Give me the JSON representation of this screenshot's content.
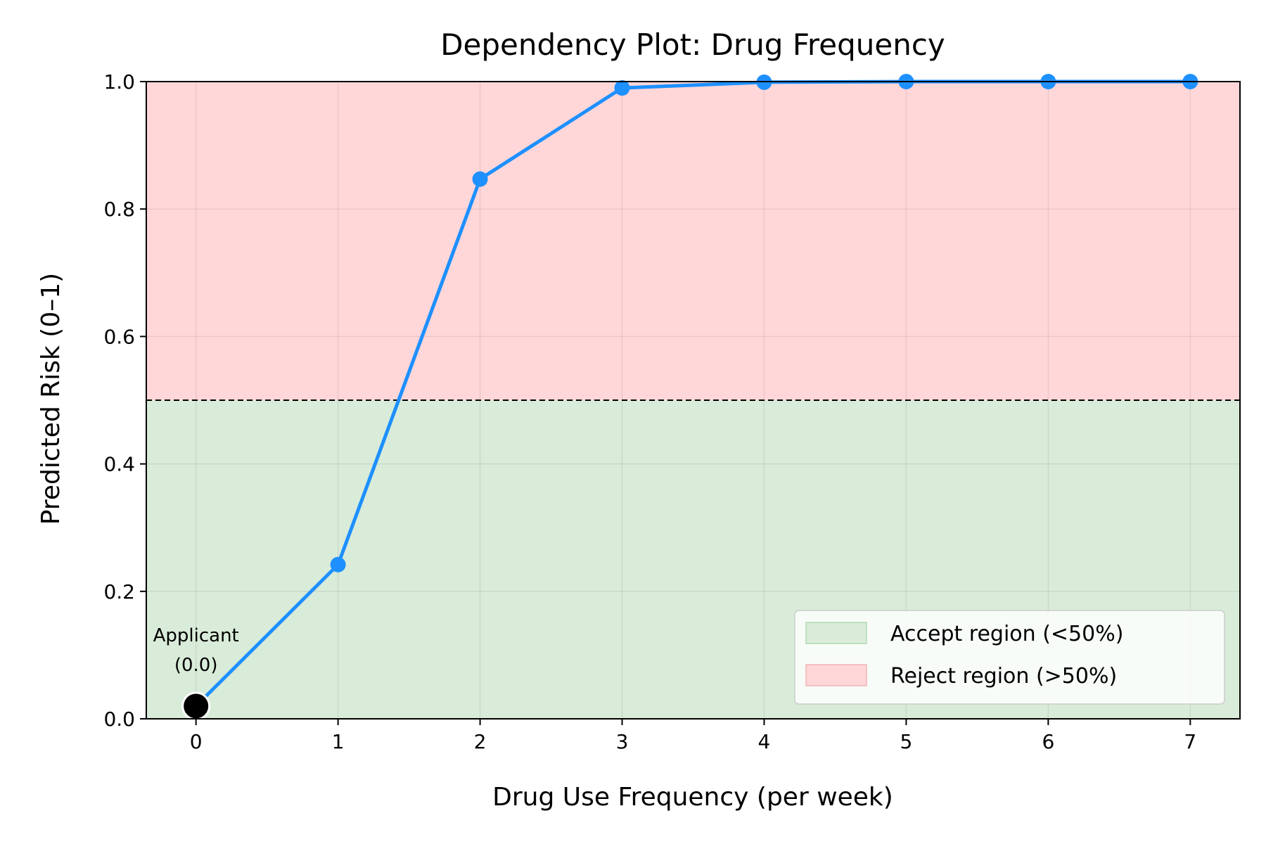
{
  "chart_data": {
    "type": "line",
    "title": "Dependency Plot: Drug Frequency",
    "xlabel": "Drug Use Frequency (per week)",
    "ylabel": "Predicted Risk (0–1)",
    "xlim": [
      -0.35,
      7.35
    ],
    "ylim": [
      0,
      1
    ],
    "xticks": [
      0,
      1,
      2,
      3,
      4,
      5,
      6,
      7
    ],
    "xtick_labels": [
      "0",
      "1",
      "2",
      "3",
      "4",
      "5",
      "6",
      "7"
    ],
    "yticks": [
      0,
      0.2,
      0.4,
      0.6,
      0.8,
      1.0
    ],
    "ytick_labels": [
      "0.0",
      "0.2",
      "0.4",
      "0.6",
      "0.8",
      "1.0"
    ],
    "grid": true,
    "series": [
      {
        "x": [
          0,
          1,
          2,
          3,
          4,
          5,
          6,
          7
        ],
        "y": [
          0.02,
          0.242,
          0.847,
          0.99,
          0.999,
          1.0,
          1.0,
          1.0
        ],
        "color": "#1e90ff"
      }
    ],
    "threshold": {
      "y": 0.5,
      "style": "dashed",
      "color": "#000000"
    },
    "regions": [
      {
        "label": "Accept region (<50%)",
        "y_range": [
          0,
          0.5
        ],
        "color": "#d9ecd9"
      },
      {
        "label": "Reject region (>50%)",
        "y_range": [
          0.5,
          1.0
        ],
        "color": "#ffd7d9"
      }
    ],
    "applicant": {
      "x": 0,
      "y": 0.02,
      "label_line1": "Applicant",
      "label_line2": "(0.0)",
      "color": "#000000"
    },
    "legend": {
      "position": "lower-right",
      "entries": [
        "Accept region (<50%)",
        "Reject region (>50%)"
      ],
      "swatch_colors": [
        "#d9ecd9",
        "#ffd7d9"
      ],
      "swatch_edges": [
        "#b3d9b3",
        "#f2b3b6"
      ]
    }
  }
}
